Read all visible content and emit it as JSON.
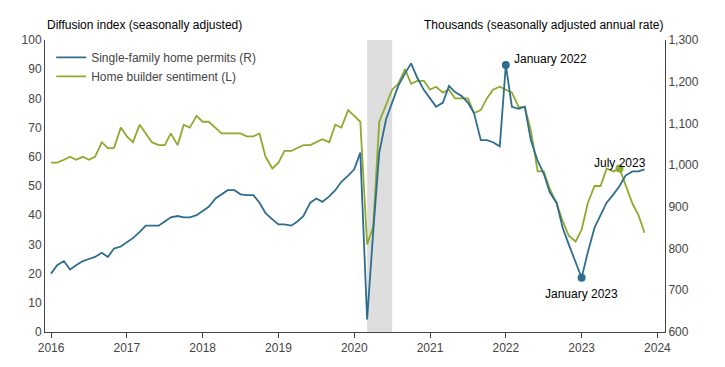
{
  "chart_data": {
    "type": "line",
    "ylabel": "Diffusion index (seasonally adjusted)",
    "y2label": "Thousands (seasonally adjusted annual rate)",
    "x": [
      2016.0,
      2016.08,
      2016.17,
      2016.25,
      2016.33,
      2016.42,
      2016.5,
      2016.58,
      2016.67,
      2016.75,
      2016.83,
      2016.92,
      2017.0,
      2017.08,
      2017.17,
      2017.25,
      2017.33,
      2017.42,
      2017.5,
      2017.58,
      2017.67,
      2017.75,
      2017.83,
      2017.92,
      2018.0,
      2018.08,
      2018.17,
      2018.25,
      2018.33,
      2018.42,
      2018.5,
      2018.58,
      2018.67,
      2018.75,
      2018.83,
      2018.92,
      2019.0,
      2019.08,
      2019.17,
      2019.25,
      2019.33,
      2019.42,
      2019.5,
      2019.58,
      2019.67,
      2019.75,
      2019.83,
      2019.92,
      2020.0,
      2020.08,
      2020.17,
      2020.25,
      2020.33,
      2020.42,
      2020.5,
      2020.58,
      2020.67,
      2020.75,
      2020.83,
      2020.92,
      2021.0,
      2021.08,
      2021.17,
      2021.25,
      2021.33,
      2021.42,
      2021.5,
      2021.58,
      2021.67,
      2021.75,
      2021.83,
      2021.92,
      2022.0,
      2022.08,
      2022.17,
      2022.25,
      2022.33,
      2022.42,
      2022.5,
      2022.58,
      2022.67,
      2022.75,
      2022.83,
      2022.92,
      2023.0,
      2023.08,
      2023.17,
      2023.25,
      2023.33,
      2023.42,
      2023.5,
      2023.58,
      2023.67,
      2023.75,
      2023.83
    ],
    "series": [
      {
        "name": "Single-family home permits (R)",
        "color": "#2e6d8e",
        "axis": "y2",
        "values": [
          740,
          760,
          770,
          750,
          760,
          770,
          775,
          780,
          790,
          780,
          800,
          805,
          815,
          825,
          840,
          855,
          855,
          855,
          865,
          875,
          878,
          875,
          875,
          880,
          890,
          900,
          920,
          930,
          940,
          940,
          930,
          928,
          928,
          910,
          885,
          870,
          858,
          858,
          855,
          865,
          878,
          910,
          920,
          912,
          925,
          940,
          960,
          975,
          990,
          1030,
          630,
          840,
          1030,
          1110,
          1150,
          1190,
          1220,
          1244,
          1210,
          1180,
          1160,
          1140,
          1150,
          1190,
          1175,
          1165,
          1150,
          1125,
          1060,
          1060,
          1055,
          1045,
          1240,
          1140,
          1135,
          1140,
          1060,
          1010,
          980,
          935,
          910,
          850,
          810,
          770,
          730,
          790,
          850,
          880,
          910,
          930,
          950,
          975,
          985,
          985,
          990
        ]
      },
      {
        "name": "Home builder sentiment (L)",
        "color": "#8faa2e",
        "axis": "y",
        "values": [
          58,
          58,
          59,
          60,
          59,
          60,
          59,
          60,
          65,
          63,
          63,
          70,
          67,
          65,
          71,
          68,
          65,
          64,
          64,
          68,
          64,
          71,
          70,
          74,
          72,
          72,
          70,
          68,
          68,
          68,
          68,
          67,
          67,
          68,
          60,
          56,
          58,
          62,
          62,
          63,
          64,
          64,
          65,
          66,
          65,
          71,
          70,
          76,
          74,
          72,
          30,
          36,
          72,
          78,
          83,
          85,
          90,
          85,
          86,
          86,
          83,
          84,
          82,
          83,
          80,
          80,
          80,
          75,
          76,
          80,
          83,
          84,
          83,
          82,
          77,
          77,
          69,
          55,
          55,
          49,
          44,
          38,
          33,
          31,
          35,
          44,
          50,
          50,
          56,
          55,
          56,
          50,
          44,
          40,
          34
        ]
      }
    ],
    "xlim": [
      2015.92,
      2024.1
    ],
    "xticks": [
      2016,
      2017,
      2018,
      2019,
      2020,
      2021,
      2022,
      2023,
      2024
    ],
    "ylim": [
      0,
      100
    ],
    "yticks": [
      0,
      10,
      20,
      30,
      40,
      50,
      60,
      70,
      80,
      90,
      100
    ],
    "y2lim": [
      600,
      1300
    ],
    "y2ticks": [
      600,
      700,
      800,
      900,
      {
        "value": 1000,
        "label": "1,000"
      },
      {
        "value": 1100,
        "label": "1,100"
      },
      {
        "value": 1200,
        "label": "1,200"
      },
      {
        "value": 1300,
        "label": "1,300"
      }
    ],
    "shading": {
      "x": [
        2020.17,
        2020.5
      ],
      "color": "#d0d0d0"
    },
    "points": [
      {
        "x": 2022.0,
        "y": 1240,
        "axis": "y2",
        "color": "#2e6d8e"
      },
      {
        "x": 2023.0,
        "y": 730,
        "axis": "y2",
        "color": "#2e6d8e"
      },
      {
        "x": 2023.5,
        "y": 56,
        "axis": "y",
        "color": "#8faa2e"
      }
    ],
    "annotations": [
      {
        "text": "January 2022",
        "x": 2022.0,
        "y": 1240,
        "axis": "y2"
      },
      {
        "text": "January 2023",
        "x": 2023.0,
        "y": 730,
        "axis": "y2"
      },
      {
        "text": "July 2023",
        "x": 2023.5,
        "y": 950,
        "axis": "y2"
      }
    ],
    "legend": "upper left",
    "grid": false
  }
}
